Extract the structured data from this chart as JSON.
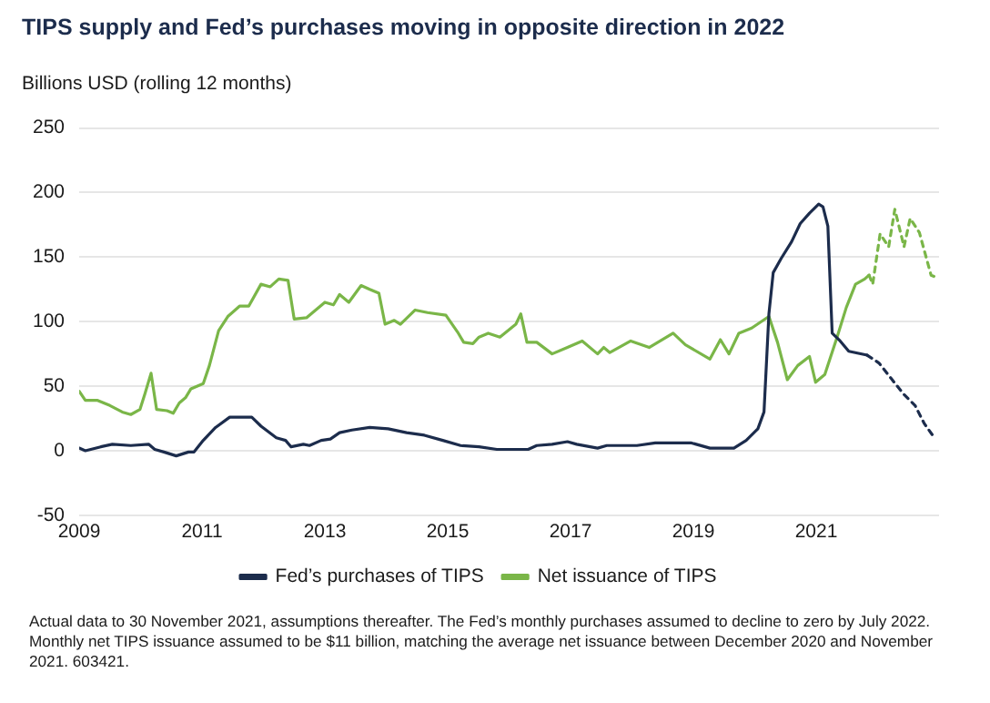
{
  "chart_data": {
    "type": "line",
    "title": "TIPS supply and Fed’s purchases moving in opposite direction in 2022",
    "ylabel": "Billions USD (rolling 12 months)",
    "xlim": [
      2009,
      2023
    ],
    "xticks": [
      2009,
      2011,
      2013,
      2015,
      2017,
      2019,
      2021
    ],
    "ylim": [
      -50,
      250
    ],
    "yticks": [
      -50,
      0,
      50,
      100,
      150,
      200,
      250
    ],
    "grid": "y",
    "legend": "bottom",
    "marker": "none",
    "line_style": "solid",
    "annotations": [
      "Actual data to 30 November 2021, assumptions thereafter. The Fed’s monthly purchases assumed to decline to zero by July 2022. Monthly net TIPS  issuance assumed to be $11 billion, matching the average net issuance between December 2020 and November 2021. 603421."
    ],
    "series": [
      {
        "name": "Fed’s purchases of TIPS",
        "color": "#1c2c4c",
        "x": [
          2009.0,
          2009.1,
          2009.35,
          2009.54,
          2009.84,
          2010.13,
          2010.23,
          2010.38,
          2010.58,
          2010.78,
          2010.87,
          2011.02,
          2011.22,
          2011.45,
          2011.81,
          2011.96,
          2012.21,
          2012.36,
          2012.45,
          2012.65,
          2012.75,
          2012.94,
          2013.09,
          2013.24,
          2013.44,
          2013.73,
          2014.03,
          2014.33,
          2014.62,
          2014.92,
          2015.21,
          2015.51,
          2015.8,
          2016.31,
          2016.45,
          2016.7,
          2016.95,
          2017.1,
          2017.44,
          2017.59,
          2018.08,
          2018.38,
          2018.97,
          2019.27,
          2019.66,
          2019.86,
          2020.05,
          2020.15,
          2020.23,
          2020.3,
          2020.43,
          2020.6,
          2020.74,
          2020.89,
          2021.04,
          2021.11,
          2021.19,
          2021.26,
          2021.39,
          2021.53,
          2021.83
        ],
        "values": [
          2,
          0,
          3,
          5,
          4,
          5,
          1,
          -1,
          -4,
          -1,
          -1,
          8,
          18,
          26,
          26,
          19,
          10,
          8,
          3,
          5,
          4,
          8,
          9,
          14,
          16,
          18,
          17,
          14,
          12,
          8,
          4,
          3,
          1,
          1,
          4,
          5,
          7,
          5,
          2,
          4,
          4,
          6,
          6,
          2,
          2,
          8,
          17,
          30,
          106,
          138,
          149,
          162,
          176,
          184,
          191,
          189,
          174,
          91,
          85,
          77,
          74
        ]
      },
      {
        "name": "Net issuance of TIPS",
        "color": "#7ab648",
        "x": [
          2009.0,
          2009.1,
          2009.3,
          2009.5,
          2009.7,
          2009.84,
          2009.99,
          2010.07,
          2010.17,
          2010.26,
          2010.43,
          2010.53,
          2010.63,
          2010.73,
          2010.82,
          2011.02,
          2011.12,
          2011.27,
          2011.42,
          2011.61,
          2011.76,
          2011.96,
          2012.11,
          2012.25,
          2012.4,
          2012.5,
          2012.7,
          2012.85,
          2013.0,
          2013.14,
          2013.24,
          2013.39,
          2013.59,
          2013.73,
          2013.88,
          2013.98,
          2014.13,
          2014.23,
          2014.47,
          2014.67,
          2014.97,
          2015.16,
          2015.26,
          2015.41,
          2015.51,
          2015.66,
          2015.85,
          2016.11,
          2016.19,
          2016.29,
          2016.45,
          2016.7,
          2016.95,
          2017.19,
          2017.44,
          2017.54,
          2017.64,
          2017.98,
          2018.28,
          2018.67,
          2018.87,
          2019.27,
          2019.44,
          2019.58,
          2019.74,
          2019.95,
          2020.23,
          2020.37,
          2020.53,
          2020.7,
          2020.89,
          2020.99,
          2021.14,
          2021.34,
          2021.49,
          2021.64,
          2021.79,
          2021.86
        ],
        "values": [
          46,
          39,
          39,
          35,
          30,
          28,
          32,
          44,
          60,
          32,
          31,
          29,
          37,
          41,
          48,
          52,
          66,
          93,
          104,
          112,
          112,
          129,
          127,
          133,
          132,
          102,
          103,
          109,
          115,
          113,
          121,
          115,
          128,
          125,
          122,
          98,
          101,
          98,
          109,
          107,
          105,
          92,
          84,
          83,
          88,
          91,
          88,
          98,
          106,
          84,
          84,
          75,
          80,
          85,
          75,
          80,
          76,
          85,
          80,
          91,
          82,
          71,
          86,
          75,
          91,
          95,
          104,
          84,
          55,
          66,
          73,
          53,
          59,
          88,
          111,
          129,
          133,
          136
        ]
      },
      {
        "color": "#1c2c4c",
        "line_style": "dashed",
        "x": [
          2021.83,
          2022.02,
          2022.22,
          2022.42,
          2022.61,
          2022.76,
          2022.91
        ],
        "values": [
          74,
          68,
          56,
          44,
          35,
          21,
          11
        ]
      },
      {
        "color": "#7ab648",
        "line_style": "dashed",
        "x": [
          2021.86,
          2021.92,
          2022.04,
          2022.18,
          2022.28,
          2022.43,
          2022.53,
          2022.68,
          2022.87,
          2022.97
        ],
        "values": [
          136,
          129,
          168,
          158,
          187,
          158,
          180,
          169,
          136,
          134
        ]
      }
    ]
  }
}
